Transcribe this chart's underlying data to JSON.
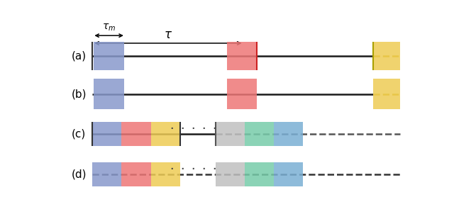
{
  "fig_width": 6.4,
  "fig_height": 3.09,
  "dpi": 100,
  "bg_color": "#ffffff",
  "labels": [
    "(a)",
    "(b)",
    "(c)",
    "(d)"
  ],
  "colors": {
    "blue": "#8899cc",
    "red": "#ee7777",
    "yellow": "#eecc55",
    "gray": "#c0c0c0",
    "green": "#77ccaa",
    "cyan": "#7aafd4"
  },
  "tau_m_label": "$\\tau_m$",
  "tau_label": "$\\tau$"
}
